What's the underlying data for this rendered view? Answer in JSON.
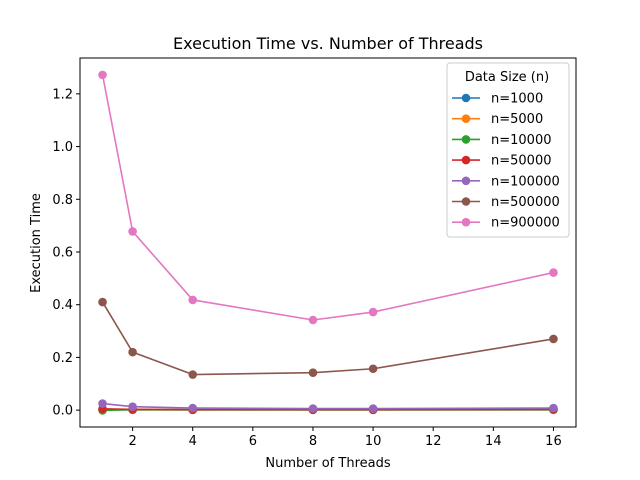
{
  "chart_data": {
    "type": "line",
    "title": "Execution Time vs. Number of Threads",
    "xlabel": "Number of Threads",
    "ylabel": "Execution Time",
    "legend_title": "Data Size (n)",
    "legend_position": "top-right",
    "grid": false,
    "xlim": [
      0.25,
      16.75
    ],
    "ylim": [
      -0.064,
      1.336
    ],
    "xticks": [
      2,
      4,
      6,
      8,
      10,
      12,
      14,
      16
    ],
    "yticks": [
      0.0,
      0.2,
      0.4,
      0.6,
      0.8,
      1.0,
      1.2
    ],
    "xtick_labels": [
      "2",
      "4",
      "6",
      "8",
      "10",
      "12",
      "14",
      "16"
    ],
    "ytick_labels": [
      "0.0",
      "0.2",
      "0.4",
      "0.6",
      "0.8",
      "1.0",
      "1.2"
    ],
    "x": [
      1,
      2,
      4,
      8,
      10,
      16
    ],
    "series": [
      {
        "name": "n=1000",
        "color": "#1f77b4",
        "values": [
          0.001,
          0.001,
          0.001,
          0.001,
          0.001,
          0.001
        ]
      },
      {
        "name": "n=5000",
        "color": "#ff7f0e",
        "values": [
          0.002,
          0.001,
          0.001,
          0.001,
          0.001,
          0.001
        ]
      },
      {
        "name": "n=10000",
        "color": "#2ca02c",
        "values": [
          -0.001,
          0.002,
          0.001,
          0.001,
          0.001,
          0.002
        ]
      },
      {
        "name": "n=50000",
        "color": "#d62728",
        "values": [
          0.005,
          0.003,
          0.002,
          0.002,
          0.002,
          0.003
        ]
      },
      {
        "name": "n=100000",
        "color": "#9467bd",
        "values": [
          0.025,
          0.013,
          0.008,
          0.006,
          0.006,
          0.008
        ]
      },
      {
        "name": "n=500000",
        "color": "#8c564b",
        "values": [
          0.41,
          0.22,
          0.135,
          0.142,
          0.157,
          0.27
        ]
      },
      {
        "name": "n=900000",
        "color": "#e377c2",
        "values": [
          1.272,
          0.678,
          0.418,
          0.342,
          0.372,
          0.522
        ]
      }
    ]
  }
}
